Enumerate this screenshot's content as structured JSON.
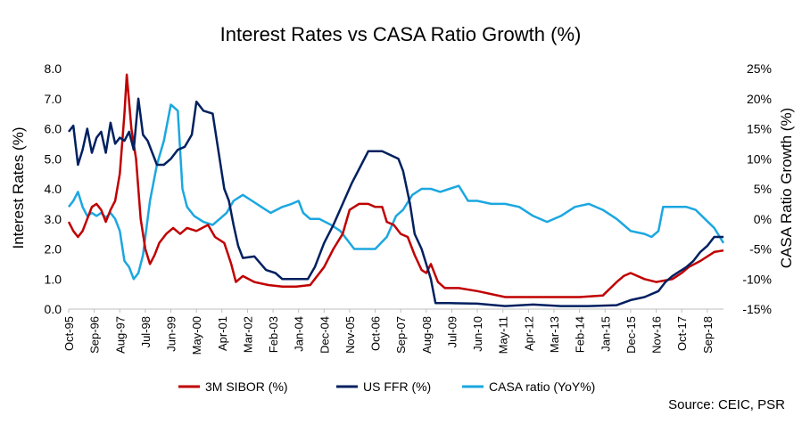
{
  "chart_data": {
    "type": "line",
    "title": "Interest Rates vs CASA Ratio Growth (%)",
    "ylabel_left": "Interest Rates (%)",
    "ylabel_right": "CASA Ratio Growth (%)",
    "source": "Source: CEIC, PSR",
    "ylim_left": [
      0,
      8
    ],
    "ylim_right": [
      -15,
      25
    ],
    "left_ticks": [
      "0.0",
      "1.0",
      "2.0",
      "3.0",
      "4.0",
      "5.0",
      "6.0",
      "7.0",
      "8.0"
    ],
    "right_ticks": [
      "-15%",
      "-10%",
      "-5%",
      "0%",
      "5%",
      "10%",
      "15%",
      "20%",
      "25%"
    ],
    "x_range": [
      "1995-10",
      "2019-04"
    ],
    "x_tick_labels": [
      "Oct-95",
      "Sep-96",
      "Aug-97",
      "Jul-98",
      "Jun-99",
      "May-00",
      "Apr-01",
      "Mar-02",
      "Feb-03",
      "Jan-04",
      "Dec-04",
      "Nov-05",
      "Oct-06",
      "Sep-07",
      "Aug-08",
      "Jul-09",
      "Jun-10",
      "May-11",
      "Apr-12",
      "Mar-13",
      "Feb-14",
      "Jan-15",
      "Dec-15",
      "Nov-16",
      "Oct-17",
      "Sep-18"
    ],
    "legend_position": "bottom",
    "colors": {
      "sibor": "#c00000",
      "ffr": "#002060",
      "casa": "#1ba7e0"
    },
    "series": [
      {
        "name": "3M SIBOR (%)",
        "axis": "left",
        "color": "#c00000",
        "points": [
          [
            "1995-10",
            2.9
          ],
          [
            "1995-12",
            2.6
          ],
          [
            "1996-02",
            2.4
          ],
          [
            "1996-04",
            2.6
          ],
          [
            "1996-06",
            3.0
          ],
          [
            "1996-08",
            3.4
          ],
          [
            "1996-10",
            3.5
          ],
          [
            "1996-12",
            3.3
          ],
          [
            "1997-02",
            2.9
          ],
          [
            "1997-04",
            3.3
          ],
          [
            "1997-06",
            3.6
          ],
          [
            "1997-08",
            4.5
          ],
          [
            "1997-10",
            6.5
          ],
          [
            "1997-11",
            7.8
          ],
          [
            "1998-01",
            6.0
          ],
          [
            "1998-03",
            5.0
          ],
          [
            "1998-05",
            3.0
          ],
          [
            "1998-07",
            2.0
          ],
          [
            "1998-09",
            1.5
          ],
          [
            "1998-11",
            1.8
          ],
          [
            "1999-01",
            2.2
          ],
          [
            "1999-04",
            2.5
          ],
          [
            "1999-07",
            2.7
          ],
          [
            "1999-10",
            2.5
          ],
          [
            "2000-01",
            2.7
          ],
          [
            "2000-05",
            2.6
          ],
          [
            "2000-10",
            2.8
          ],
          [
            "2001-01",
            2.4
          ],
          [
            "2001-05",
            2.2
          ],
          [
            "2001-08",
            1.5
          ],
          [
            "2001-10",
            0.9
          ],
          [
            "2002-01",
            1.1
          ],
          [
            "2002-06",
            0.9
          ],
          [
            "2002-12",
            0.8
          ],
          [
            "2003-06",
            0.75
          ],
          [
            "2003-12",
            0.75
          ],
          [
            "2004-06",
            0.8
          ],
          [
            "2004-12",
            1.4
          ],
          [
            "2005-04",
            2.0
          ],
          [
            "2005-08",
            2.5
          ],
          [
            "2005-11",
            3.3
          ],
          [
            "2006-03",
            3.5
          ],
          [
            "2006-07",
            3.5
          ],
          [
            "2006-10",
            3.4
          ],
          [
            "2007-01",
            3.4
          ],
          [
            "2007-03",
            2.9
          ],
          [
            "2007-06",
            2.8
          ],
          [
            "2007-09",
            2.5
          ],
          [
            "2007-12",
            2.4
          ],
          [
            "2008-03",
            1.8
          ],
          [
            "2008-06",
            1.3
          ],
          [
            "2008-08",
            1.2
          ],
          [
            "2008-10",
            1.5
          ],
          [
            "2009-01",
            0.9
          ],
          [
            "2009-04",
            0.7
          ],
          [
            "2009-10",
            0.7
          ],
          [
            "2010-06",
            0.6
          ],
          [
            "2011-06",
            0.4
          ],
          [
            "2012-04",
            0.4
          ],
          [
            "2013-03",
            0.4
          ],
          [
            "2014-02",
            0.4
          ],
          [
            "2014-12",
            0.45
          ],
          [
            "2015-06",
            0.9
          ],
          [
            "2015-09",
            1.1
          ],
          [
            "2015-12",
            1.2
          ],
          [
            "2016-06",
            1.0
          ],
          [
            "2016-11",
            0.9
          ],
          [
            "2017-06",
            1.0
          ],
          [
            "2017-10",
            1.2
          ],
          [
            "2018-01",
            1.4
          ],
          [
            "2018-06",
            1.6
          ],
          [
            "2018-12",
            1.9
          ],
          [
            "2019-04",
            1.95
          ]
        ]
      },
      {
        "name": "US FFR (%)",
        "axis": "left",
        "color": "#002060",
        "points": [
          [
            "1995-10",
            5.9
          ],
          [
            "1995-12",
            6.1
          ],
          [
            "1996-02",
            4.8
          ],
          [
            "1996-04",
            5.3
          ],
          [
            "1996-06",
            6.0
          ],
          [
            "1996-08",
            5.2
          ],
          [
            "1996-10",
            5.7
          ],
          [
            "1996-12",
            5.9
          ],
          [
            "1997-02",
            5.2
          ],
          [
            "1997-04",
            6.2
          ],
          [
            "1997-06",
            5.5
          ],
          [
            "1997-08",
            5.7
          ],
          [
            "1997-10",
            5.6
          ],
          [
            "1997-12",
            5.9
          ],
          [
            "1998-02",
            5.3
          ],
          [
            "1998-04",
            7.0
          ],
          [
            "1998-06",
            5.8
          ],
          [
            "1998-08",
            5.6
          ],
          [
            "1998-10",
            5.2
          ],
          [
            "1998-12",
            4.8
          ],
          [
            "1999-03",
            4.8
          ],
          [
            "1999-06",
            5.0
          ],
          [
            "1999-09",
            5.3
          ],
          [
            "1999-12",
            5.4
          ],
          [
            "2000-03",
            5.8
          ],
          [
            "2000-05",
            6.9
          ],
          [
            "2000-08",
            6.6
          ],
          [
            "2000-12",
            6.5
          ],
          [
            "2001-02",
            5.5
          ],
          [
            "2001-05",
            4.0
          ],
          [
            "2001-07",
            3.6
          ],
          [
            "2001-09",
            2.8
          ],
          [
            "2001-11",
            2.1
          ],
          [
            "2002-01",
            1.7
          ],
          [
            "2002-06",
            1.75
          ],
          [
            "2002-11",
            1.3
          ],
          [
            "2003-03",
            1.2
          ],
          [
            "2003-06",
            1.0
          ],
          [
            "2003-12",
            1.0
          ],
          [
            "2004-05",
            1.0
          ],
          [
            "2004-08",
            1.4
          ],
          [
            "2004-12",
            2.2
          ],
          [
            "2005-04",
            2.8
          ],
          [
            "2005-08",
            3.5
          ],
          [
            "2005-12",
            4.2
          ],
          [
            "2006-04",
            4.8
          ],
          [
            "2006-07",
            5.25
          ],
          [
            "2007-01",
            5.25
          ],
          [
            "2007-08",
            5.0
          ],
          [
            "2007-10",
            4.6
          ],
          [
            "2008-01",
            3.5
          ],
          [
            "2008-03",
            2.5
          ],
          [
            "2008-06",
            2.0
          ],
          [
            "2008-10",
            1.0
          ],
          [
            "2008-12",
            0.2
          ],
          [
            "2009-06",
            0.2
          ],
          [
            "2010-06",
            0.18
          ],
          [
            "2011-06",
            0.1
          ],
          [
            "2012-06",
            0.15
          ],
          [
            "2013-06",
            0.1
          ],
          [
            "2014-06",
            0.1
          ],
          [
            "2015-06",
            0.13
          ],
          [
            "2015-12",
            0.3
          ],
          [
            "2016-06",
            0.4
          ],
          [
            "2016-12",
            0.6
          ],
          [
            "2017-03",
            0.9
          ],
          [
            "2017-06",
            1.1
          ],
          [
            "2017-12",
            1.4
          ],
          [
            "2018-03",
            1.6
          ],
          [
            "2018-06",
            1.9
          ],
          [
            "2018-09",
            2.1
          ],
          [
            "2018-12",
            2.4
          ],
          [
            "2019-04",
            2.4
          ]
        ]
      },
      {
        "name": "CASA ratio (YoY%)",
        "axis": "right",
        "color": "#1ba7e0",
        "points": [
          [
            "1995-10",
            2
          ],
          [
            "1995-12",
            3
          ],
          [
            "1996-02",
            4.5
          ],
          [
            "1996-04",
            2
          ],
          [
            "1996-06",
            0.5
          ],
          [
            "1996-08",
            1
          ],
          [
            "1996-10",
            0.5
          ],
          [
            "1996-12",
            1
          ],
          [
            "1997-02",
            0.2
          ],
          [
            "1997-04",
            1
          ],
          [
            "1997-06",
            0
          ],
          [
            "1997-08",
            -2
          ],
          [
            "1997-10",
            -7
          ],
          [
            "1997-12",
            -8
          ],
          [
            "1998-02",
            -10
          ],
          [
            "1998-04",
            -9
          ],
          [
            "1998-06",
            -6
          ],
          [
            "1998-09",
            3
          ],
          [
            "1998-12",
            9
          ],
          [
            "1999-03",
            13
          ],
          [
            "1999-06",
            19
          ],
          [
            "1999-09",
            18
          ],
          [
            "1999-11",
            5
          ],
          [
            "2000-01",
            2
          ],
          [
            "2000-04",
            0.5
          ],
          [
            "2000-08",
            -0.5
          ],
          [
            "2000-12",
            -1
          ],
          [
            "2001-03",
            0
          ],
          [
            "2001-06",
            1
          ],
          [
            "2001-09",
            3
          ],
          [
            "2002-01",
            4
          ],
          [
            "2002-05",
            3
          ],
          [
            "2002-09",
            2
          ],
          [
            "2003-01",
            1
          ],
          [
            "2003-06",
            2
          ],
          [
            "2003-10",
            2.5
          ],
          [
            "2004-01",
            3
          ],
          [
            "2004-03",
            1
          ],
          [
            "2004-06",
            0
          ],
          [
            "2004-10",
            0
          ],
          [
            "2005-03",
            -1
          ],
          [
            "2005-07",
            -2
          ],
          [
            "2006-01",
            -5
          ],
          [
            "2006-06",
            -5
          ],
          [
            "2006-10",
            -5
          ],
          [
            "2007-03",
            -3
          ],
          [
            "2007-07",
            0.5
          ],
          [
            "2007-10",
            1.5
          ],
          [
            "2008-02",
            4
          ],
          [
            "2008-06",
            5
          ],
          [
            "2008-10",
            5
          ],
          [
            "2009-02",
            4.5
          ],
          [
            "2009-06",
            5
          ],
          [
            "2009-10",
            5.5
          ],
          [
            "2010-02",
            3
          ],
          [
            "2010-06",
            3
          ],
          [
            "2010-12",
            2.5
          ],
          [
            "2011-06",
            2.5
          ],
          [
            "2011-12",
            2
          ],
          [
            "2012-06",
            0.5
          ],
          [
            "2012-12",
            -0.5
          ],
          [
            "2013-06",
            0.5
          ],
          [
            "2013-12",
            2
          ],
          [
            "2014-06",
            2.5
          ],
          [
            "2014-12",
            1.5
          ],
          [
            "2015-06",
            0
          ],
          [
            "2015-09",
            -1
          ],
          [
            "2015-12",
            -2
          ],
          [
            "2016-06",
            -2.5
          ],
          [
            "2016-09",
            -3
          ],
          [
            "2016-12",
            -2
          ],
          [
            "2017-02",
            2
          ],
          [
            "2017-06",
            2
          ],
          [
            "2017-12",
            2
          ],
          [
            "2018-04",
            1.5
          ],
          [
            "2018-08",
            0
          ],
          [
            "2018-12",
            -1.5
          ],
          [
            "2019-04",
            -4
          ]
        ]
      }
    ]
  }
}
